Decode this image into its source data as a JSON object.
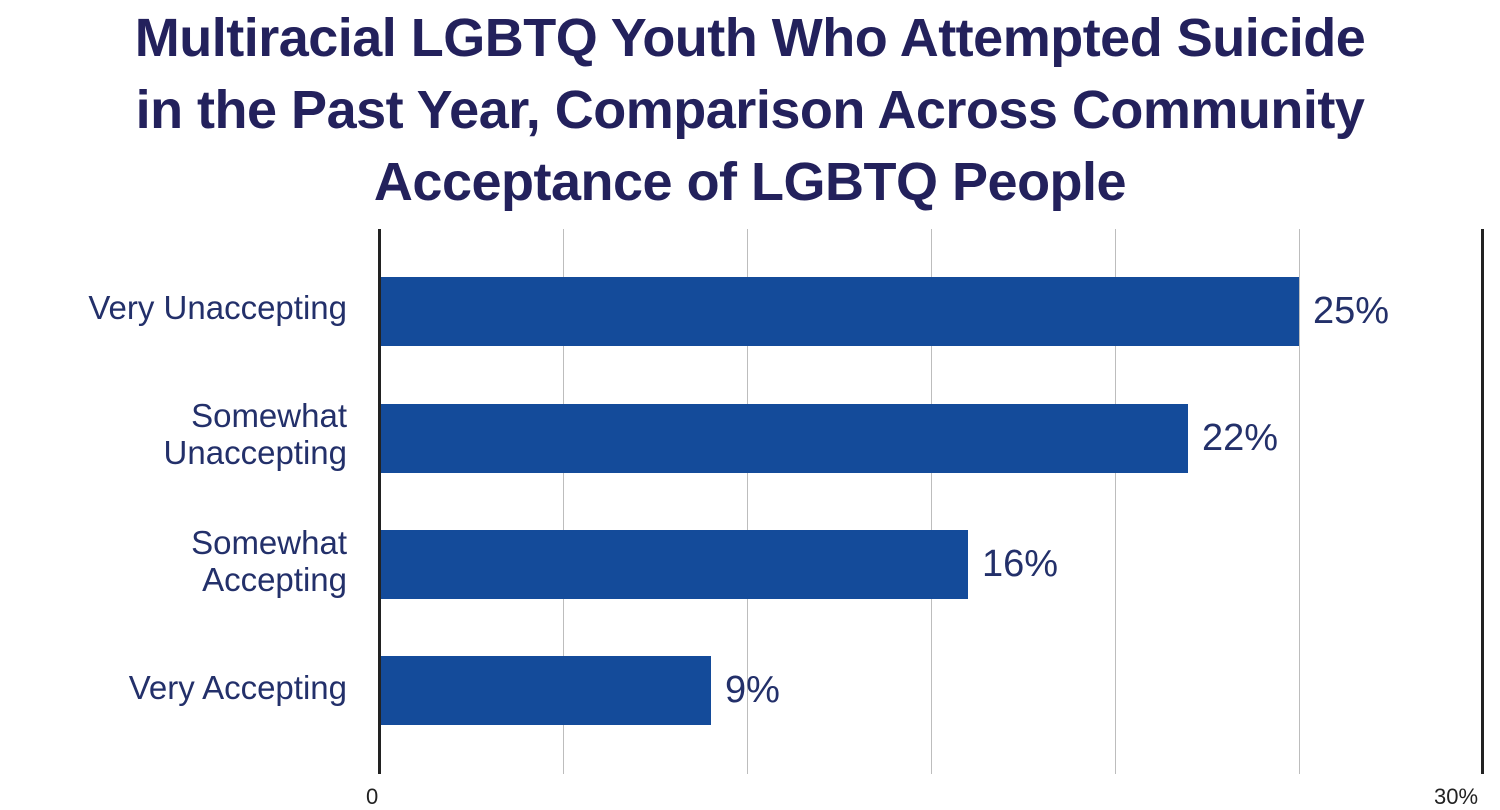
{
  "chart_data": {
    "type": "bar",
    "orientation": "horizontal",
    "title": "Multiracial LGBTQ Youth Who Attempted Suicide in the Past Year, Comparison Across Community Acceptance of LGBTQ People",
    "title_lines": [
      "Multiracial LGBTQ Youth Who Attempted Suicide",
      "in the Past Year, Comparison Across Community",
      "Acceptance of LGBTQ People"
    ],
    "categories": [
      "Very Unaccepting",
      "Somewhat Unaccepting",
      "Somewhat Accepting",
      "Very Accepting"
    ],
    "category_lines": [
      [
        "Very Unaccepting"
      ],
      [
        "Somewhat",
        "Unaccepting"
      ],
      [
        "Somewhat",
        "Accepting"
      ],
      [
        "Very Accepting"
      ]
    ],
    "values": [
      25,
      22,
      16,
      9
    ],
    "value_labels": [
      "25%",
      "22%",
      "16%",
      "9%"
    ],
    "xlabel": "",
    "ylabel": "",
    "xlim": [
      0,
      30
    ],
    "x_tick_labels": [
      "0",
      "30%"
    ],
    "grid": true,
    "grid_interval": 5,
    "bar_color": "#144b9a",
    "text_color": "#23306a",
    "title_color": "#23215c"
  }
}
